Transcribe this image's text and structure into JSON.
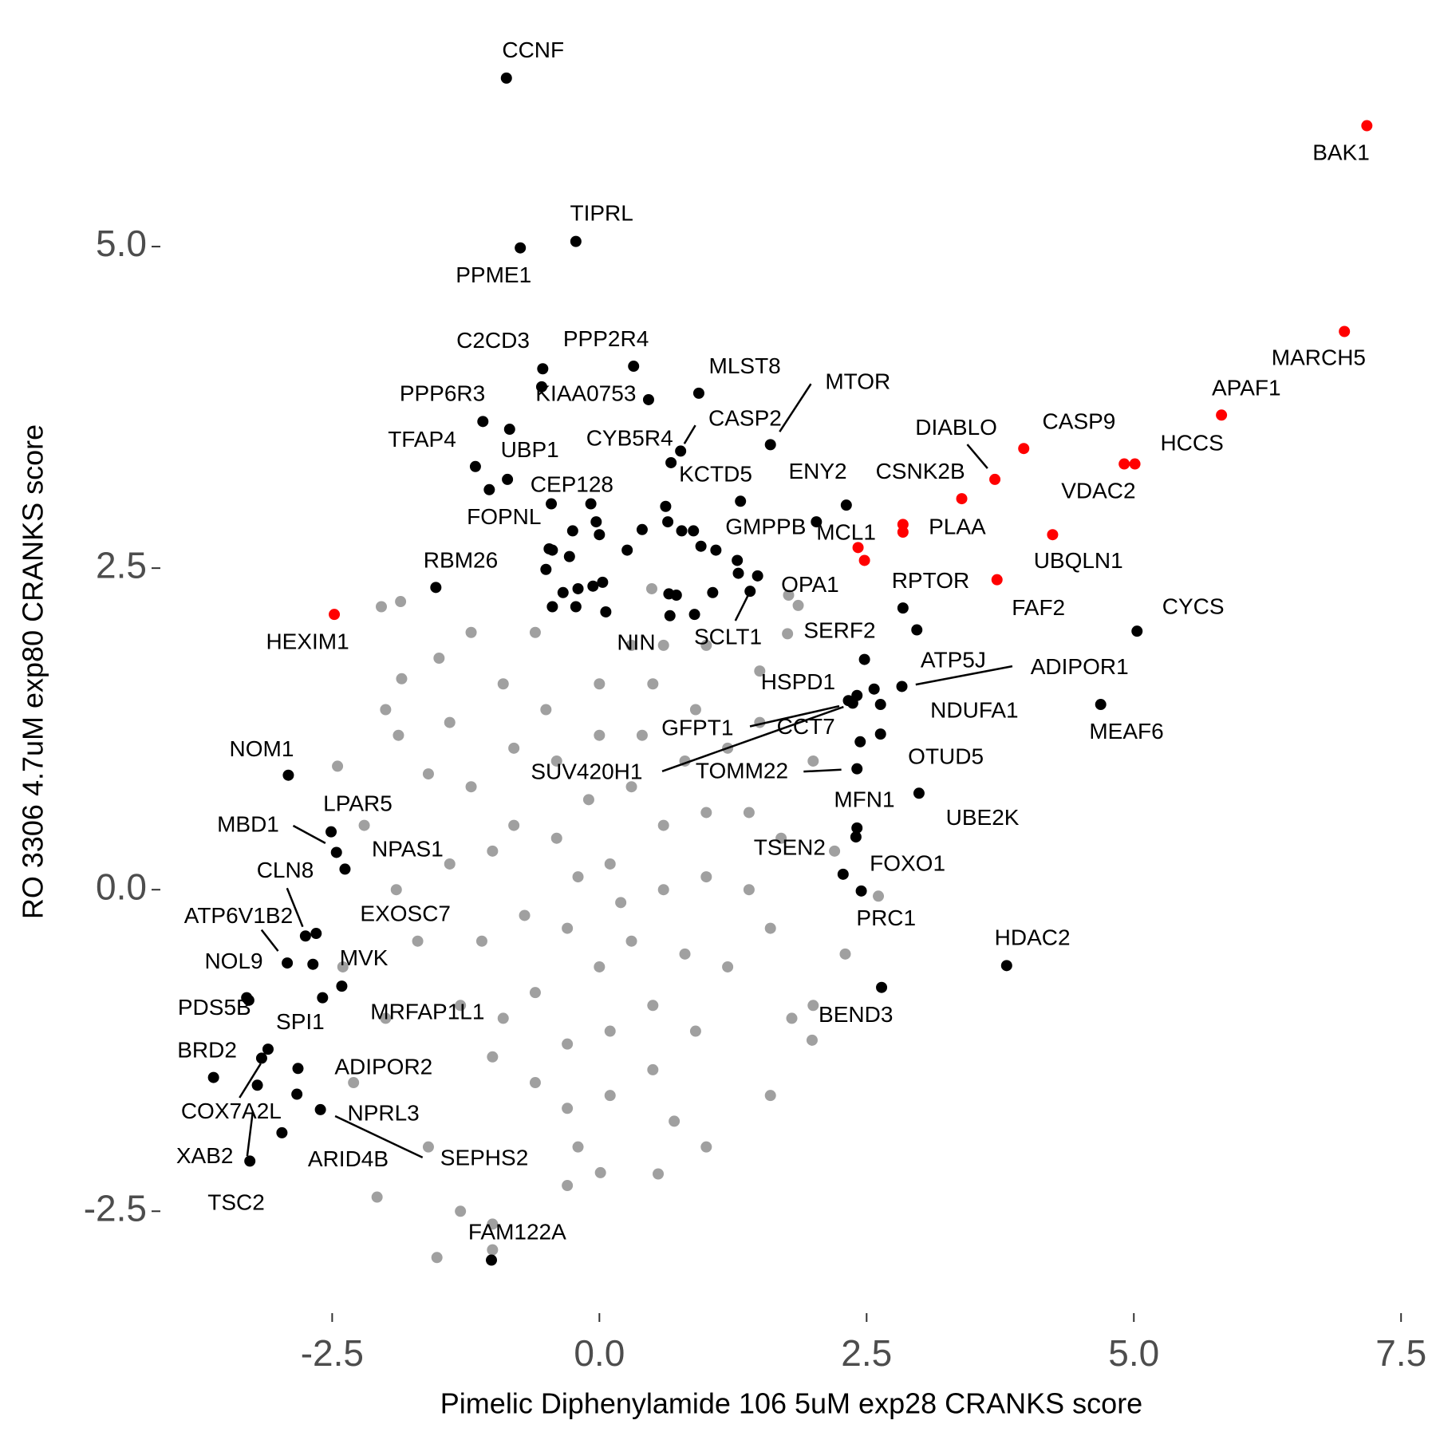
{
  "chart_data": {
    "type": "scatter",
    "xlabel": "Pimelic Diphenylamide 106 5uM exp28 CRANKS score",
    "ylabel": "RO 3306 4.7uM exp80 CRANKS score",
    "xlim": [
      -4.1,
      7.7
    ],
    "ylim": [
      -3.1,
      6.7
    ],
    "xticks": [
      -2.5,
      {
        "value": 0,
        "label": "0.0"
      },
      2.5,
      {
        "value": 5,
        "label": "5.0"
      },
      7.5
    ],
    "yticks": [
      -2.5,
      {
        "value": 0,
        "label": "0.0"
      },
      2.5,
      {
        "value": 5,
        "label": "5.0"
      }
    ],
    "series": [
      {
        "color": "#a0a0a0",
        "x": [
          -1.86,
          -2.04,
          -2.45,
          -1.85,
          -1.88,
          -1.52,
          -2.08,
          0.01,
          0.55,
          1.99,
          2.61,
          1.77,
          1.86,
          0.49,
          1.76,
          -1.0,
          -1.0,
          -1.3,
          -2.3,
          -2.4,
          -2.2,
          -2.0,
          -1.5,
          -1.2,
          -0.6,
          0.3,
          1.0,
          1.5,
          2.0,
          2.2,
          2.3,
          2.0,
          1.6,
          1.0,
          -0.3,
          -1.6,
          -2.0,
          -1.9,
          -1.6,
          -0.9,
          -1.2,
          -1.0,
          -1.1,
          -0.9,
          -0.6,
          -0.3,
          0.1,
          0.5,
          0.9,
          1.2,
          1.4,
          1.4,
          1.2,
          0.9,
          0.5,
          0.0,
          -0.5,
          -0.8,
          -0.8,
          -0.7,
          -0.6,
          -0.3,
          0.1,
          0.5,
          0.8,
          1.0,
          1.0,
          0.8,
          0.4,
          0.0,
          -0.4,
          -0.4,
          -0.3,
          0.0,
          0.3,
          0.6,
          0.6,
          0.3,
          -0.1,
          0.1,
          0.2,
          -0.2,
          -1.4,
          -1.3,
          -1.0,
          1.6,
          1.7,
          1.5,
          -0.2,
          0.7,
          -1.4,
          0.6,
          1.8,
          -1.7
        ],
        "y": [
          2.24,
          2.2,
          0.96,
          1.64,
          1.2,
          -2.86,
          -2.39,
          -2.2,
          -2.21,
          -1.17,
          -0.05,
          2.29,
          2.21,
          2.34,
          1.99,
          -2.6,
          -2.8,
          -2.5,
          -1.5,
          -0.6,
          0.5,
          1.4,
          1.8,
          2.0,
          2.0,
          1.9,
          1.9,
          1.7,
          1.0,
          0.3,
          -0.5,
          -0.9,
          -1.6,
          -2.0,
          -2.3,
          -2.0,
          -1.0,
          0.0,
          0.9,
          1.6,
          0.8,
          0.3,
          -0.4,
          -1.0,
          -1.5,
          -1.7,
          -1.6,
          -1.4,
          -1.1,
          -0.6,
          0.0,
          0.6,
          1.1,
          1.4,
          1.6,
          1.6,
          1.4,
          1.1,
          0.5,
          -0.2,
          -0.8,
          -1.2,
          -1.1,
          -0.9,
          -0.5,
          0.1,
          0.6,
          1.0,
          1.2,
          1.2,
          1.0,
          0.4,
          -0.3,
          -0.6,
          -0.4,
          0.0,
          0.5,
          0.8,
          0.7,
          0.2,
          -0.1,
          0.1,
          0.2,
          -0.9,
          -1.3,
          -0.3,
          0.4,
          1.3,
          -2.0,
          -1.8,
          1.3,
          1.9,
          -1.0,
          -0.4
        ]
      },
      {
        "color": "#000000",
        "labels": [
          "CCNF",
          "TIPRL",
          "PPME1",
          "C2CD3",
          "PPP2R4",
          "KIAA0753",
          null,
          "PPP6R3",
          "UBP1",
          "MLST8",
          "MTOR",
          "CYB5R4",
          "CASP2",
          "TFAP4",
          "CEP128",
          "FOPNL",
          "KCTD5",
          "ENY2",
          "GMPPB",
          "RBM26",
          "OPA1",
          "SCLT1",
          "NIN",
          "RPTOR",
          null,
          "SERF2",
          "CYCS",
          "ADIPOR1",
          "ATP5J",
          "HSPD1",
          "GFPT1",
          "SUV420H1",
          "CCT7",
          "NDUFA1",
          "OTUD5",
          "TOMM22",
          "UBE2K",
          "MFN1",
          "TSEN2",
          "FOXO1",
          "PRC1",
          "HDAC2",
          "BEND3",
          "MEAF6",
          "NOM1",
          "LPAR5",
          "MBD1",
          "NPAS1",
          "CLN8",
          "EXOSC7",
          "ATP6V1B2",
          "NOL9",
          "MVK",
          "PDS5B",
          null,
          "MRFAP1L1",
          "SPI1",
          "BRD2",
          "ADIPOR2",
          "COX7A2L",
          "TSC2",
          "NPRL3",
          "SEPHS2",
          "ARID4B",
          "XAB2",
          "FAM122A",
          null,
          null,
          null,
          null,
          null,
          null,
          null,
          null,
          null,
          null,
          null,
          null,
          null,
          null,
          null,
          null,
          null,
          null,
          null,
          null,
          null,
          null,
          null,
          null,
          null,
          null,
          null,
          null,
          null,
          null
        ],
        "x": [
          -0.87,
          -0.22,
          -0.74,
          -0.53,
          0.32,
          -0.54,
          0.46,
          -1.09,
          -0.84,
          0.93,
          1.6,
          0.67,
          0.76,
          -1.16,
          -0.86,
          -1.03,
          1.32,
          2.31,
          2.03,
          -1.53,
          1.48,
          1.41,
          0.06,
          2.84,
          2.97,
          2.48,
          5.03,
          2.83,
          2.57,
          2.41,
          2.33,
          2.37,
          2.44,
          2.63,
          2.63,
          2.41,
          2.99,
          2.41,
          2.4,
          2.28,
          2.45,
          3.81,
          2.64,
          4.69,
          -2.91,
          -2.51,
          -2.46,
          -2.38,
          -2.75,
          -2.65,
          -2.92,
          -2.68,
          -2.41,
          -3.3,
          -3.28,
          -2.59,
          -3.1,
          -3.61,
          -2.82,
          -3.16,
          -3.2,
          -2.83,
          -2.61,
          -2.97,
          -3.27,
          -1.01,
          -0.45,
          -0.25,
          -0.47,
          -0.44,
          -0.5,
          -0.28,
          -0.2,
          -0.06,
          0.03,
          -0.34,
          -0.44,
          -0.22,
          -0.08,
          -0.03,
          0.0,
          0.26,
          0.4,
          0.62,
          0.64,
          0.77,
          0.88,
          0.95,
          1.09,
          1.29,
          1.3,
          0.65,
          0.72,
          0.66,
          0.89,
          1.06
        ],
        "y": [
          6.31,
          5.04,
          4.99,
          4.05,
          4.07,
          3.91,
          3.81,
          3.64,
          3.58,
          3.86,
          3.46,
          3.32,
          3.41,
          3.29,
          3.19,
          3.11,
          3.02,
          2.99,
          2.86,
          2.35,
          2.44,
          2.32,
          2.16,
          2.19,
          2.02,
          1.79,
          2.01,
          1.58,
          1.56,
          1.51,
          1.47,
          1.45,
          1.15,
          1.44,
          1.21,
          0.94,
          0.75,
          0.48,
          0.41,
          0.12,
          -0.01,
          -0.59,
          -0.76,
          1.44,
          0.89,
          0.45,
          0.29,
          0.16,
          -0.36,
          -0.34,
          -0.57,
          -0.58,
          -0.75,
          -0.84,
          -0.86,
          -0.84,
          -1.24,
          -1.46,
          -1.39,
          -1.31,
          -1.52,
          -1.59,
          -1.71,
          -1.89,
          -2.11,
          -2.88,
          3.0,
          2.79,
          2.65,
          2.64,
          2.49,
          2.59,
          2.34,
          2.36,
          2.39,
          2.31,
          2.2,
          2.2,
          3.0,
          2.86,
          2.76,
          2.64,
          2.8,
          2.98,
          2.86,
          2.79,
          2.79,
          2.67,
          2.64,
          2.56,
          2.46,
          2.3,
          2.29,
          2.13,
          2.14,
          2.31
        ]
      },
      {
        "color": "#ff0000",
        "labels": [
          "BAK1",
          "MARCH5",
          "APAF1",
          "VDAC2",
          "HCCS",
          "CASP9",
          "DIABLO",
          "CSNK2B",
          "PLAA",
          null,
          "MCL1",
          null,
          "UBQLN1",
          "FAF2",
          "HEXIM1"
        ],
        "x": [
          7.18,
          6.97,
          5.82,
          4.91,
          5.01,
          3.97,
          3.7,
          3.39,
          2.84,
          2.84,
          2.42,
          2.48,
          4.24,
          3.72,
          -2.48
        ],
        "y": [
          5.94,
          4.34,
          3.69,
          3.31,
          3.31,
          3.43,
          3.19,
          3.04,
          2.84,
          2.78,
          2.66,
          2.56,
          2.76,
          2.41,
          2.14
        ]
      }
    ]
  }
}
